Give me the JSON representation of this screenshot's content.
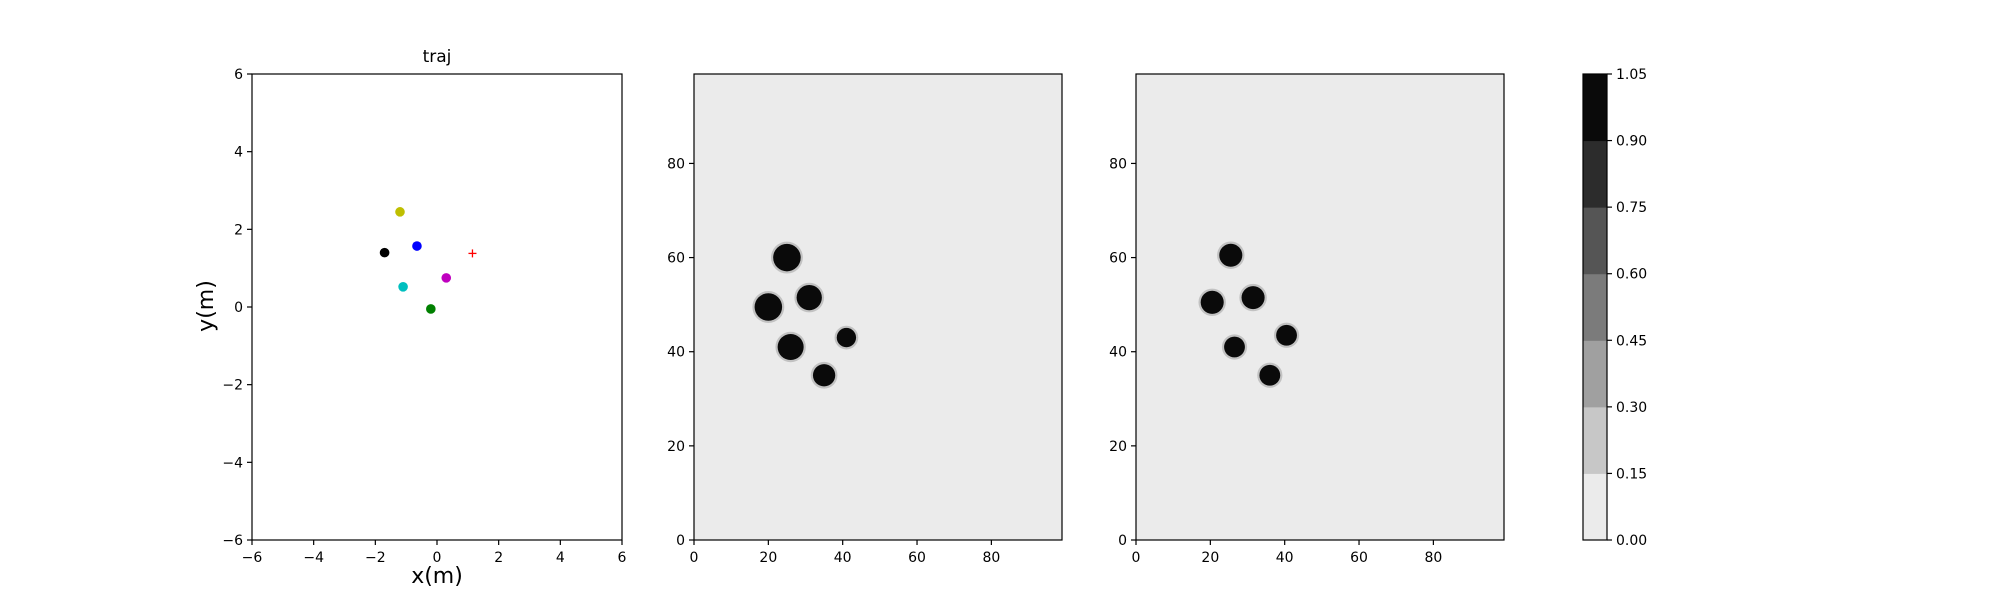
{
  "chart_data": [
    {
      "type": "scatter",
      "title": "traj",
      "xlabel": "x(m)",
      "ylabel": "y(m)",
      "xlim": [
        -6,
        6
      ],
      "ylim": [
        -6,
        6
      ],
      "xticks": [
        -6,
        -4,
        -2,
        0,
        2,
        4,
        6
      ],
      "yticks": [
        -6,
        -4,
        -2,
        0,
        2,
        4,
        6
      ],
      "grid": false,
      "points": [
        {
          "x": -1.2,
          "y": 2.45,
          "color": "#bfbf00",
          "marker": "circle"
        },
        {
          "x": -1.7,
          "y": 1.4,
          "color": "#000000",
          "marker": "circle"
        },
        {
          "x": -0.65,
          "y": 1.57,
          "color": "#0000ff",
          "marker": "circle"
        },
        {
          "x": 0.3,
          "y": 0.75,
          "color": "#bf00bf",
          "marker": "circle"
        },
        {
          "x": -1.1,
          "y": 0.52,
          "color": "#00bfbf",
          "marker": "circle"
        },
        {
          "x": -0.2,
          "y": -0.05,
          "color": "#008000",
          "marker": "circle"
        },
        {
          "x": 1.15,
          "y": 1.38,
          "color": "#ff0000",
          "marker": "plus"
        }
      ]
    },
    {
      "type": "heatmap",
      "title": "",
      "xlim": [
        0,
        99
      ],
      "ylim": [
        0,
        99
      ],
      "xticks": [
        0,
        20,
        40,
        60,
        80
      ],
      "yticks": [
        0,
        20,
        40,
        60,
        80
      ],
      "background_value": 0.07,
      "blob_value": 1.0,
      "blobs": [
        {
          "cx": 25,
          "cy": 60,
          "r": 3.7
        },
        {
          "cx": 20,
          "cy": 49.5,
          "r": 3.7
        },
        {
          "cx": 31,
          "cy": 51.5,
          "r": 3.4
        },
        {
          "cx": 26,
          "cy": 41,
          "r": 3.5
        },
        {
          "cx": 41,
          "cy": 43,
          "r": 2.6
        },
        {
          "cx": 35,
          "cy": 35,
          "r": 3.0
        }
      ]
    },
    {
      "type": "heatmap",
      "title": "",
      "xlim": [
        0,
        99
      ],
      "ylim": [
        0,
        99
      ],
      "xticks": [
        0,
        20,
        40,
        60,
        80
      ],
      "yticks": [
        0,
        20,
        40,
        60,
        80
      ],
      "background_value": 0.07,
      "blob_value": 1.0,
      "blobs": [
        {
          "cx": 25.5,
          "cy": 60.5,
          "r": 3.1
        },
        {
          "cx": 20.5,
          "cy": 50.5,
          "r": 3.1
        },
        {
          "cx": 31.5,
          "cy": 51.5,
          "r": 3.1
        },
        {
          "cx": 26.5,
          "cy": 41,
          "r": 2.8
        },
        {
          "cx": 40.5,
          "cy": 43.5,
          "r": 2.8
        },
        {
          "cx": 36,
          "cy": 35,
          "r": 2.8
        }
      ]
    },
    {
      "type": "colorbar",
      "range": [
        0.0,
        1.05
      ],
      "tick_labels": [
        "0.00",
        "0.15",
        "0.30",
        "0.45",
        "0.60",
        "0.75",
        "0.90",
        "1.05"
      ],
      "level_colors": [
        "#ebebeb",
        "#c7c7c7",
        "#a0a0a0",
        "#7b7b7b",
        "#555555",
        "#2c2c2c",
        "#0a0a0a"
      ]
    }
  ]
}
